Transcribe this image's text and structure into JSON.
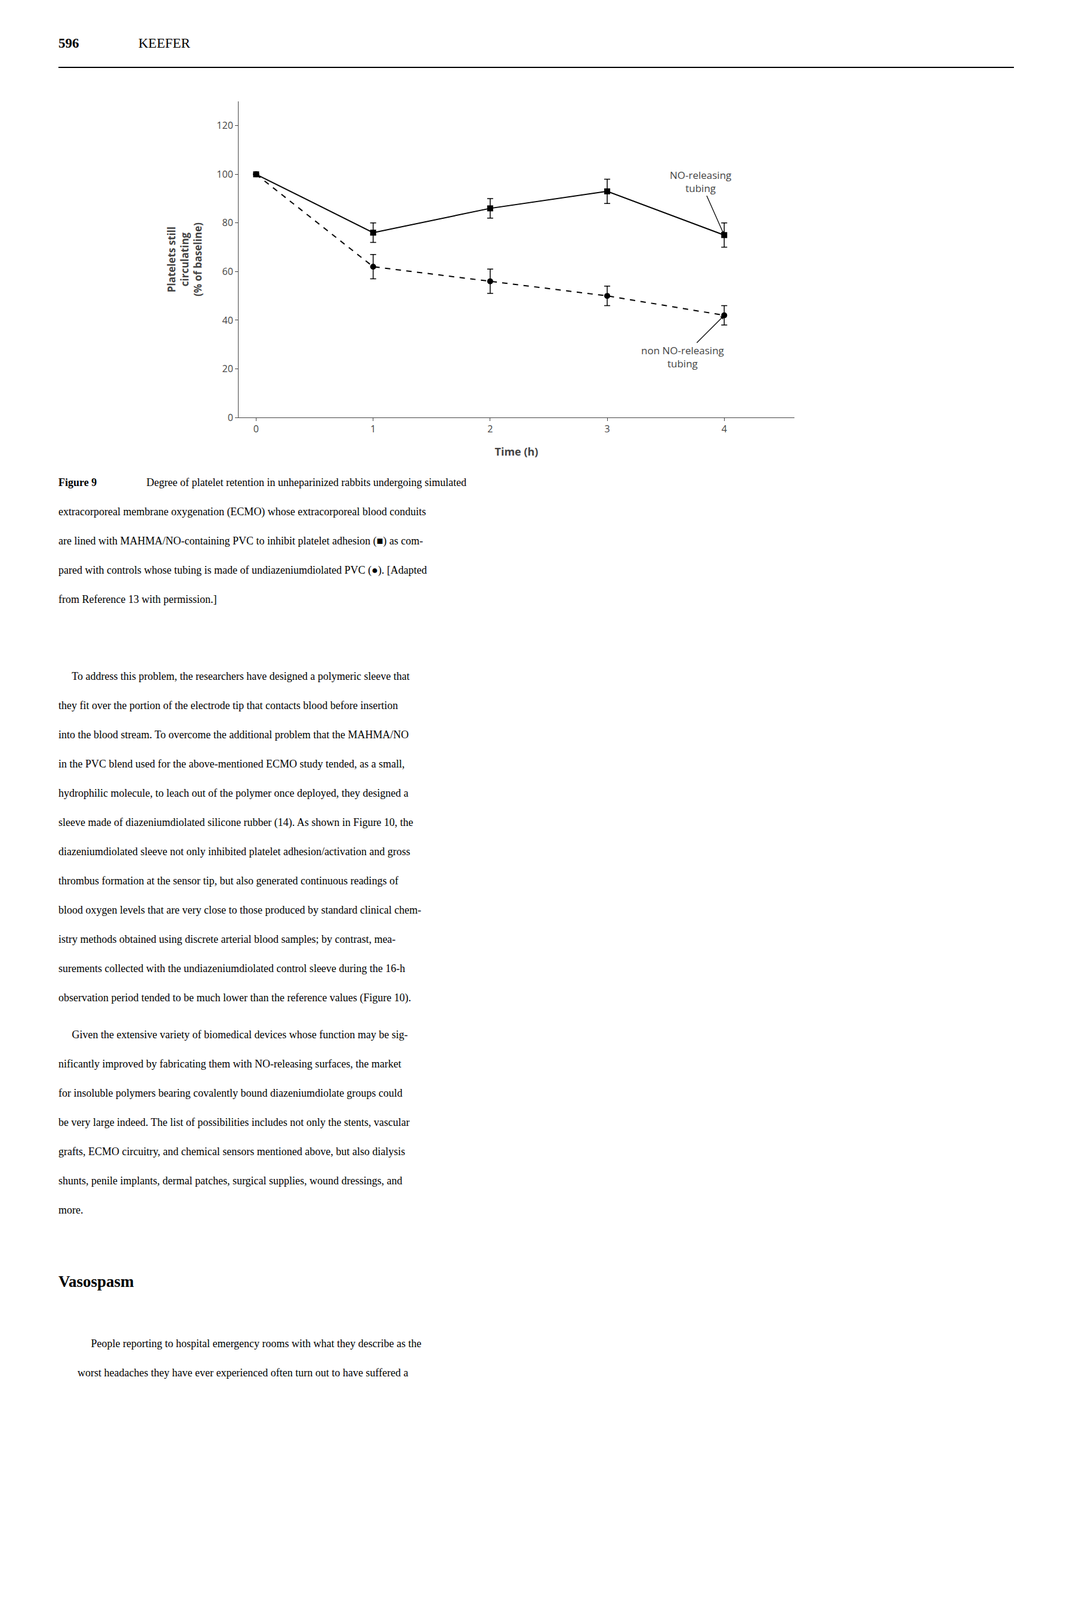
{
  "chart_data": {
    "type": "line",
    "xlabel": "Time (h)",
    "ylabel": "Platelets still\ncirculating\n(% of baseline)",
    "x": [
      0,
      1,
      2,
      3,
      4
    ],
    "series": [
      {
        "color": "#000000",
        "marker": "square",
        "line_style": "solid",
        "values": [
          100,
          76,
          86,
          93,
          75
        ],
        "errors": [
          0,
          4,
          4,
          5,
          5
        ]
      },
      {
        "color": "#000000",
        "marker": "circle",
        "line_style": "dash",
        "values": [
          100,
          62,
          56,
          50,
          42
        ],
        "errors": [
          0,
          5,
          5,
          4,
          4
        ]
      }
    ],
    "xlim": [
      -0.15,
      4.6
    ],
    "ylim": [
      0,
      130
    ],
    "xticks": [
      0,
      1,
      2,
      3,
      4
    ],
    "yticks": [
      0,
      20,
      40,
      60,
      80,
      100,
      120
    ],
    "grid": false,
    "annotations": [
      {
        "text": "NO-releasing\ntubing",
        "x": 4,
        "y": 75
      },
      {
        "text": "non NO-releasing\ntubing",
        "x": 4,
        "y": 42
      }
    ]
  },
  "page": {
    "header_num": "596",
    "header_name": "KEEFER",
    "caption_label": "Figure 9",
    "caption_lines": [
      "   Degree of platelet retention in unheparinized rabbits undergoing simulated",
      "extracorporeal membrane oxygenation (ECMO) whose extracorporeal blood conduits",
      "are lined with MAHMA/NO-containing PVC to inhibit platelet adhesion (■) as com-",
      "pared with controls whose tubing is made of undiazeniumdiolated PVC (●). [Adapted",
      "from Reference 13 with permission.]"
    ],
    "paragraphs": [
      [
        "     To address this problem, the researchers have designed a polymeric sleeve that",
        "they fit over the portion of the electrode tip that contacts blood before insertion",
        "into the blood stream. To overcome the additional problem that the MAHMA/NO",
        "in the PVC blend used for the above-mentioned ECMO study tended, as a small,",
        "hydrophilic molecule, to leach out of the polymer once deployed, they designed a",
        "sleeve made of diazeniumdiolated silicone rubber (14). As shown in Figure 10, the",
        "diazeniumdiolated sleeve not only inhibited platelet adhesion/activation and gross",
        "thrombus formation at the sensor tip, but also generated continuous readings of",
        "blood oxygen levels that are very close to those produced by standard clinical chem-",
        "istry methods obtained using discrete arterial blood samples; by contrast, mea-",
        "surements collected with the undiazeniumdiolated control sleeve during the 16-h",
        "observation period tended to be much lower than the reference values (Figure 10)."
      ],
      [
        "     Given the extensive variety of biomedical devices whose function may be sig-",
        "nificantly improved by fabricating them with NO-releasing surfaces, the market",
        "for insoluble polymers bearing covalently bound diazeniumdiolate groups could",
        "be very large indeed. The list of possibilities includes not only the stents, vascular",
        "grafts, ECMO circuitry, and chemical sensors mentioned above, but also dialysis",
        "shunts, penile implants, dermal patches, surgical supplies, wound dressings, and",
        "more."
      ]
    ],
    "section_head": "Vasospasm",
    "section_lines": [
      "     People reporting to hospital emergency rooms with what they describe as the",
      "worst headaches they have ever experienced often turn out to have suffered a"
    ]
  }
}
